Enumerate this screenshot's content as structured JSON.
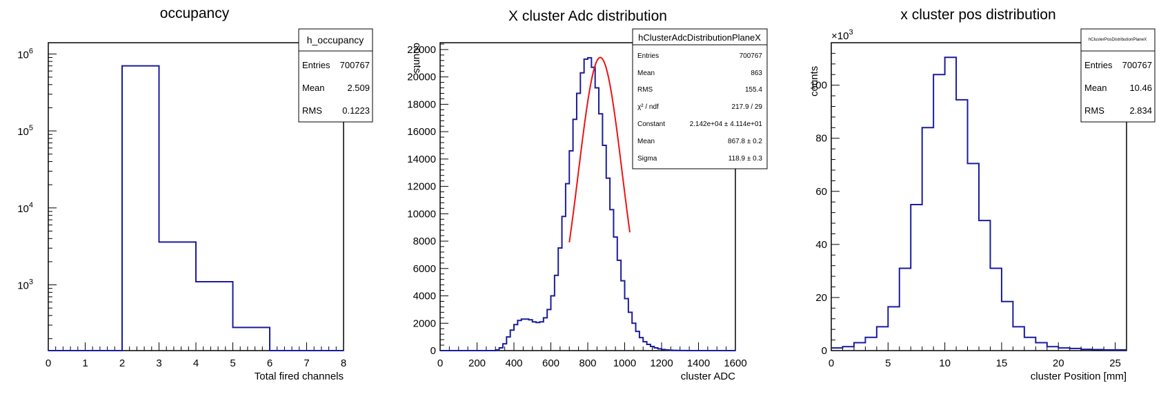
{
  "colors": {
    "histogram": "#1a1a9e",
    "fit": "#ee1111",
    "frame": "#000000"
  },
  "chart_data": [
    {
      "type": "bar",
      "title": "occupancy",
      "xlabel": "Total fired channels",
      "ylabel": "",
      "log_y": true,
      "xlim": [
        0,
        8
      ],
      "ylim": [
        140,
        1400000
      ],
      "x_ticks": [
        "0",
        "1",
        "2",
        "3",
        "4",
        "5",
        "6",
        "7",
        "8"
      ],
      "y_ticks": [
        {
          "base": "10",
          "exp": "3",
          "value": 1000
        },
        {
          "base": "10",
          "exp": "4",
          "value": 10000
        },
        {
          "base": "10",
          "exp": "5",
          "value": 100000
        },
        {
          "base": "10",
          "exp": "6",
          "value": 1000000
        }
      ],
      "bin_edges": [
        0,
        2,
        3,
        4,
        5,
        6,
        8
      ],
      "values": [
        140,
        700000,
        3600,
        1100,
        280,
        140
      ],
      "stats": {
        "name": "h_occupancy",
        "rows": [
          {
            "label": "Entries",
            "value": "700767"
          },
          {
            "label": "Mean",
            "value": "2.509"
          },
          {
            "label": "RMS",
            "value": "0.1223"
          }
        ]
      }
    },
    {
      "type": "bar",
      "title": "X cluster Adc distribution",
      "xlabel": "cluster ADC",
      "ylabel": "counts",
      "xlim": [
        0,
        1600
      ],
      "ylim": [
        0,
        22500
      ],
      "x_ticks": [
        "0",
        "200",
        "400",
        "600",
        "800",
        "1000",
        "1200",
        "1400",
        "1600"
      ],
      "y_ticks": [
        "0",
        "2000",
        "4000",
        "6000",
        "8000",
        "10000",
        "12000",
        "14000",
        "16000",
        "18000",
        "20000",
        "22000"
      ],
      "bin_width": 20,
      "bin_centers": [
        310,
        330,
        350,
        370,
        390,
        410,
        430,
        450,
        470,
        490,
        510,
        530,
        550,
        570,
        590,
        610,
        630,
        650,
        670,
        690,
        710,
        730,
        750,
        770,
        790,
        810,
        830,
        850,
        870,
        890,
        910,
        930,
        950,
        970,
        990,
        1010,
        1030,
        1050,
        1070,
        1090,
        1110,
        1130,
        1150,
        1170,
        1190,
        1210,
        1230,
        1250,
        1270,
        1290,
        1310,
        1330,
        1350,
        1370,
        1390,
        1410,
        1430,
        1450,
        1470
      ],
      "values": [
        50,
        200,
        500,
        1000,
        1500,
        1900,
        2200,
        2300,
        2300,
        2250,
        2100,
        2050,
        2100,
        2400,
        3000,
        4000,
        5500,
        7500,
        9800,
        12200,
        14600,
        16900,
        18800,
        20300,
        21300,
        21400,
        20700,
        19200,
        17300,
        15000,
        12600,
        10300,
        8300,
        6600,
        5100,
        3800,
        2800,
        2000,
        1400,
        950,
        650,
        450,
        300,
        200,
        130,
        80,
        50,
        30,
        20,
        10,
        5,
        5,
        3,
        2,
        1,
        1,
        0,
        0,
        0
      ],
      "fit": {
        "constant": 21420,
        "mean": 867.8,
        "sigma": 118.9,
        "range": [
          700,
          1030
        ]
      },
      "stats": {
        "name": "hClusterAdcDistributionPlaneX",
        "rows": [
          {
            "label": "Entries",
            "value": "700767"
          },
          {
            "label": "Mean",
            "value": "863"
          },
          {
            "label": "RMS",
            "value": "155.4"
          },
          {
            "label": "χ² / ndf",
            "value": "217.9 / 29"
          },
          {
            "label": "Constant",
            "value": "2.142e+04 ± 4.114e+01"
          },
          {
            "label": "Mean",
            "value": "867.8 ± 0.2"
          },
          {
            "label": "Sigma",
            "value": "118.9 ± 0.3"
          }
        ]
      }
    },
    {
      "type": "bar",
      "title": "x cluster pos distribution",
      "xlabel": "cluster Position [mm]",
      "ylabel": "counts",
      "y_multiplier": "×10",
      "y_multiplier_exp": "3",
      "xlim": [
        0,
        26
      ],
      "ylim": [
        0,
        116
      ],
      "x_ticks": [
        "0",
        "5",
        "10",
        "15",
        "20",
        "25"
      ],
      "y_ticks": [
        "0",
        "20",
        "40",
        "60",
        "80",
        "100"
      ],
      "bin_edges": [
        0,
        1,
        2,
        3,
        4,
        5,
        6,
        7,
        8,
        9,
        10,
        11,
        12,
        13,
        14,
        15,
        16,
        17,
        18,
        19,
        20,
        21,
        22,
        23,
        24,
        25,
        26
      ],
      "values": [
        1,
        1.5,
        3,
        5,
        9,
        16.5,
        31,
        55,
        84,
        104,
        110.5,
        94.5,
        70.5,
        49,
        31,
        18.5,
        9,
        5,
        3,
        1.5,
        1,
        0.8,
        0.5,
        0.4,
        0.3,
        0.3
      ],
      "stats": {
        "name": "hClusterPosDistributionPlaneX",
        "rows": [
          {
            "label": "Entries",
            "value": "700767"
          },
          {
            "label": "Mean",
            "value": "10.46"
          },
          {
            "label": "RMS",
            "value": "2.834"
          }
        ]
      }
    }
  ]
}
